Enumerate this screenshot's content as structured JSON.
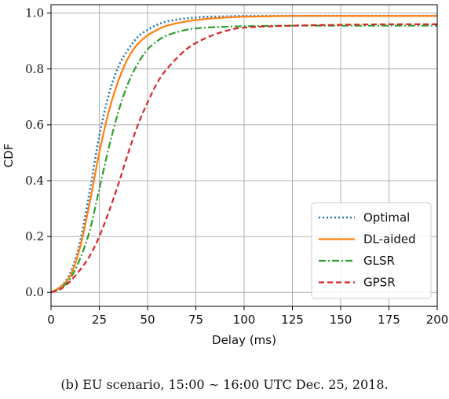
{
  "chart_data": {
    "type": "line",
    "xlabel": "Delay (ms)",
    "ylabel": "CDF",
    "xlim": [
      0,
      200
    ],
    "ylim": [
      -0.05,
      1.03
    ],
    "xticks": [
      0,
      25,
      50,
      75,
      100,
      125,
      150,
      175,
      200
    ],
    "yticks": [
      0.0,
      0.2,
      0.4,
      0.6,
      0.8,
      1.0
    ],
    "xtick_labels": [
      "0",
      "25",
      "50",
      "75",
      "100",
      "125",
      "150",
      "175",
      "200"
    ],
    "ytick_labels": [
      "0.0",
      "0.2",
      "0.4",
      "0.6",
      "0.8",
      "1.0"
    ],
    "grid": true,
    "legend_position": "bottom-right",
    "x": [
      0,
      5,
      10,
      15,
      20,
      25,
      30,
      35,
      40,
      45,
      50,
      55,
      60,
      70,
      80,
      90,
      100,
      125,
      150,
      175,
      200
    ],
    "series": [
      {
        "name": "Optimal",
        "color": "#1f77b4",
        "dash": "dotted",
        "values": [
          0.0,
          0.02,
          0.07,
          0.18,
          0.36,
          0.56,
          0.71,
          0.81,
          0.87,
          0.915,
          0.94,
          0.958,
          0.97,
          0.981,
          0.986,
          0.988,
          0.99,
          0.99,
          0.99,
          0.99,
          0.99
        ]
      },
      {
        "name": "DL-aided",
        "color": "#ff7f0e",
        "dash": "solid",
        "values": [
          0.0,
          0.02,
          0.06,
          0.16,
          0.32,
          0.5,
          0.65,
          0.76,
          0.84,
          0.89,
          0.92,
          0.94,
          0.955,
          0.97,
          0.979,
          0.984,
          0.987,
          0.99,
          0.99,
          0.99,
          0.99
        ]
      },
      {
        "name": "GLSR",
        "color": "#2ca02c",
        "dash": "dashdot",
        "values": [
          0.0,
          0.015,
          0.05,
          0.12,
          0.22,
          0.37,
          0.52,
          0.65,
          0.75,
          0.82,
          0.87,
          0.9,
          0.92,
          0.94,
          0.948,
          0.951,
          0.953,
          0.955,
          0.955,
          0.955,
          0.955
        ]
      },
      {
        "name": "GPSR",
        "color": "#d62728",
        "dash": "dashed",
        "values": [
          0.0,
          0.012,
          0.04,
          0.08,
          0.13,
          0.2,
          0.29,
          0.39,
          0.5,
          0.6,
          0.68,
          0.75,
          0.8,
          0.87,
          0.91,
          0.935,
          0.948,
          0.955,
          0.958,
          0.96,
          0.96
        ]
      }
    ]
  },
  "caption": "(b) EU scenario, 15:00 ∼ 16:00 UTC Dec. 25, 2018."
}
